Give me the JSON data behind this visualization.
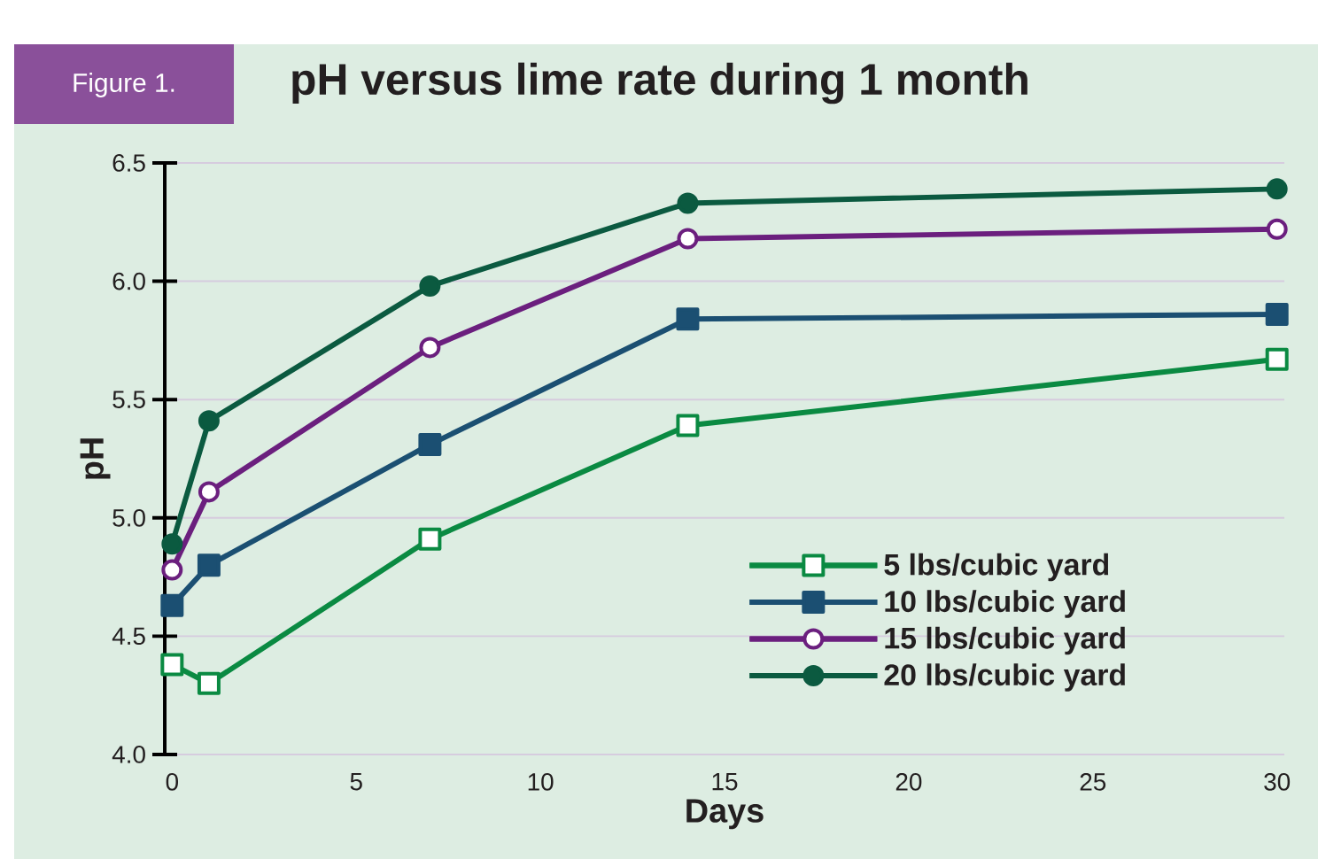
{
  "chart_data": {
    "type": "line",
    "title": "pH versus lime rate during 1 month",
    "xlabel": "Days",
    "ylabel": "pH",
    "annotations": [
      "Figure 1."
    ],
    "x": [
      0,
      1,
      7,
      14,
      30
    ],
    "series": [
      {
        "name": "5 lbs/cubic yard",
        "color": "#0a8a42",
        "marker": "square",
        "values": [
          4.38,
          4.3,
          4.91,
          5.39,
          5.67
        ]
      },
      {
        "name": "10 lbs/cubic yard",
        "color": "#1b4f72",
        "marker": "square",
        "values": [
          4.63,
          4.8,
          5.31,
          5.84,
          5.86
        ]
      },
      {
        "name": "15 lbs/cubic yard",
        "color": "#6b1f7e",
        "marker": "circle",
        "values": [
          4.78,
          5.11,
          5.72,
          6.18,
          6.22
        ]
      },
      {
        "name": "20 lbs/cubic yard",
        "color": "#0b5a40",
        "marker": "circle",
        "values": [
          4.89,
          5.41,
          5.98,
          6.33,
          6.39
        ]
      }
    ],
    "xlim": [
      -0.2,
      30.2
    ],
    "ylim": [
      4,
      6.5
    ],
    "xticks": [
      0,
      5,
      10,
      15,
      20,
      25,
      30
    ],
    "yticks": [
      {
        "value": 4,
        "label": "4.0"
      },
      {
        "value": 4.5,
        "label": "4.5"
      },
      {
        "value": 5,
        "label": "5.0"
      },
      {
        "value": 5.5,
        "label": "5.5"
      },
      {
        "value": 6,
        "label": "6.0"
      },
      {
        "value": 6.5,
        "label": "6.5"
      }
    ],
    "grid": "y",
    "legend": "bottom right",
    "line_style": "solid"
  }
}
